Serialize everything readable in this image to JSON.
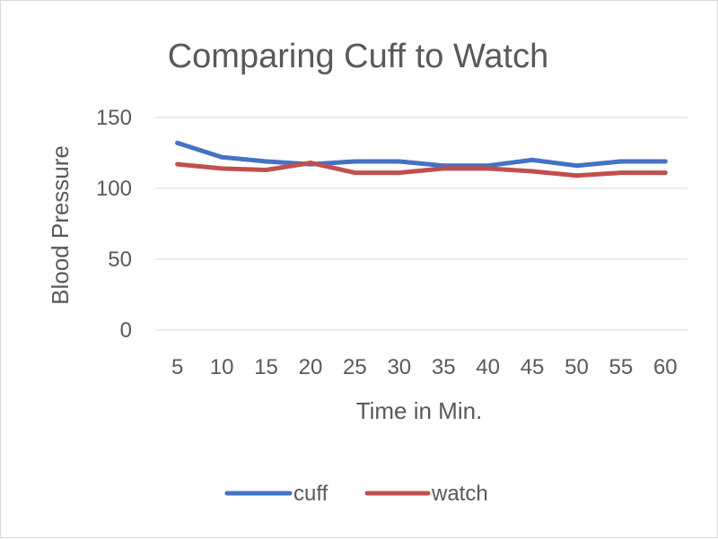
{
  "chart_data": {
    "type": "line",
    "title": "Comparing Cuff to Watch",
    "xlabel": "Time in Min.",
    "ylabel": "Blood Pressure",
    "categories": [
      "5",
      "10",
      "15",
      "20",
      "25",
      "30",
      "35",
      "40",
      "45",
      "50",
      "55",
      "60"
    ],
    "ylim": [
      0,
      150
    ],
    "yticks": [
      "0",
      "50",
      "100",
      "150"
    ],
    "grid": true,
    "legend_position": "bottom",
    "series": [
      {
        "name": "cuff",
        "color": "#4472c4",
        "values": [
          132,
          122,
          119,
          117,
          119,
          119,
          116,
          116,
          120,
          116,
          119,
          119
        ]
      },
      {
        "name": "watch",
        "color": "#c0504d",
        "values": [
          117,
          114,
          113,
          118,
          111,
          111,
          114,
          114,
          112,
          109,
          111,
          111
        ]
      }
    ]
  }
}
